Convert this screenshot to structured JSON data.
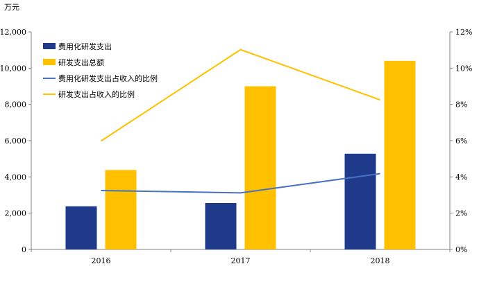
{
  "chart_data": {
    "type": "bar",
    "unit_label": "万元",
    "categories": [
      "2016",
      "2017",
      "2018"
    ],
    "y_left": {
      "ylim": [
        0,
        12000
      ],
      "ticks": [
        "0",
        "2,000",
        "4,000",
        "6,000",
        "8,000",
        "10,000",
        "12,000"
      ]
    },
    "y_right": {
      "ylim": [
        0,
        12
      ],
      "ticks": [
        "0%",
        "2%",
        "4%",
        "6%",
        "8%",
        "10%",
        "12%"
      ]
    },
    "series": [
      {
        "name": "费用化研发支出",
        "kind": "bar",
        "axis": "left",
        "color": "#1F3A8A",
        "values": [
          2380,
          2560,
          5280
        ]
      },
      {
        "name": "研发支出总额",
        "kind": "bar",
        "axis": "left",
        "color": "#FFC000",
        "values": [
          4380,
          9000,
          10400
        ]
      },
      {
        "name": "费用化研发支出占收入的比例",
        "kind": "line",
        "axis": "right",
        "color": "#4472C4",
        "values": [
          3.25,
          3.12,
          4.18
        ]
      },
      {
        "name": "研发支出占收入的比例",
        "kind": "line",
        "axis": "right",
        "color": "#FFC000",
        "values": [
          5.98,
          11.02,
          8.25
        ]
      }
    ],
    "legend_position": "top-left",
    "grid": false
  }
}
